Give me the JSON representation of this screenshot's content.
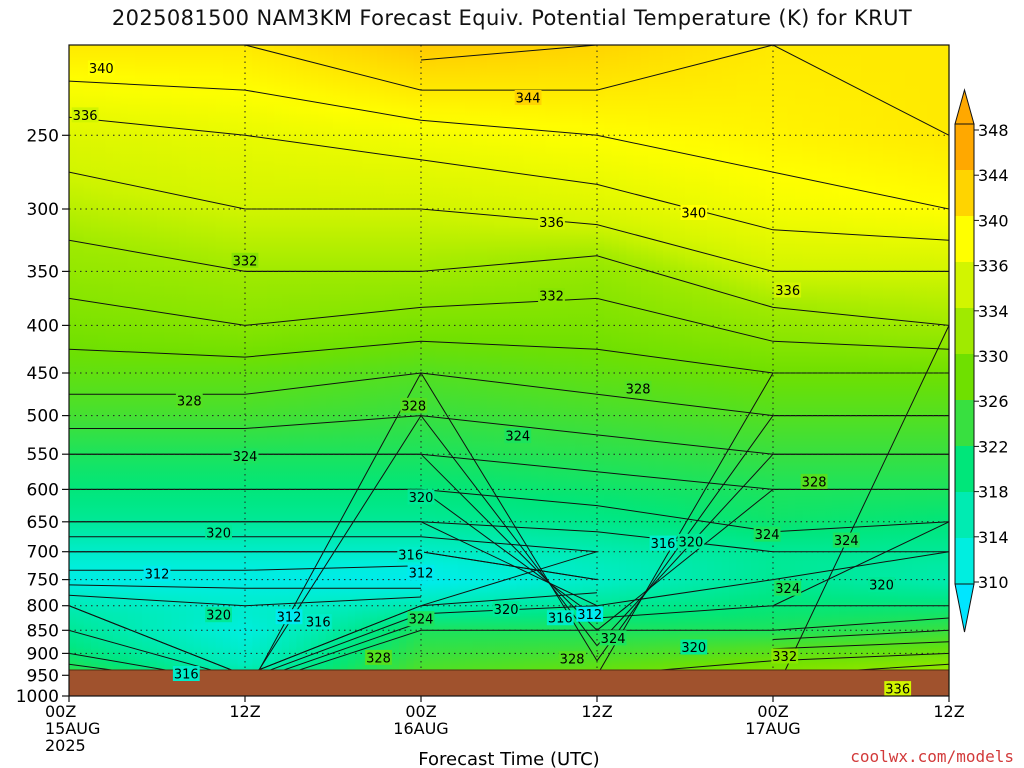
{
  "chart_data": {
    "type": "heatmap",
    "title": "2025081500 NAM3KM Forecast Equiv. Potential Temperature (K) for KRUT",
    "xlabel": "Forecast Time (UTC)",
    "ylabel": "",
    "x_ticks": [
      {
        "hour": 0,
        "lines": [
          "00Z",
          "15AUG",
          "2025"
        ]
      },
      {
        "hour": 12,
        "lines": [
          "12Z"
        ]
      },
      {
        "hour": 24,
        "lines": [
          "00Z",
          "16AUG"
        ]
      },
      {
        "hour": 36,
        "lines": [
          "12Z"
        ]
      },
      {
        "hour": 48,
        "lines": [
          "00Z",
          "17AUG"
        ]
      },
      {
        "hour": 60,
        "lines": [
          "12Z"
        ]
      }
    ],
    "y_ticks": [
      250,
      300,
      350,
      400,
      450,
      500,
      550,
      600,
      650,
      700,
      750,
      800,
      850,
      900,
      950,
      1000
    ],
    "xlim": [
      0,
      60
    ],
    "ylim": [
      1000,
      200
    ],
    "y_scale": "log",
    "grid": true,
    "colorbar": {
      "labels": [
        348,
        344,
        340,
        336,
        334,
        330,
        326,
        322,
        318,
        314,
        310
      ],
      "colors": [
        "#ffa800",
        "#ffd400",
        "#ffff00",
        "#d2f500",
        "#a0ea00",
        "#6fe000",
        "#38e040",
        "#00e67a",
        "#00ebb2",
        "#00eee0",
        "#00e6ff"
      ]
    },
    "theta_e_profiles": [
      {
        "hour": 0,
        "pressure": [
          1000,
          950,
          900,
          850,
          800,
          750,
          700,
          650,
          600,
          550,
          500,
          450,
          400,
          350,
          300,
          250,
          200
        ],
        "theta_e": [
          330,
          326,
          322,
          320,
          318,
          313,
          316,
          320,
          322,
          324,
          327,
          329,
          331,
          333,
          335,
          337,
          342
        ]
      },
      {
        "hour": 12,
        "pressure": [
          1000,
          950,
          900,
          850,
          800,
          750,
          700,
          650,
          600,
          550,
          500,
          450,
          400,
          350,
          300,
          250,
          200
        ],
        "theta_e": [
          328,
          318,
          316,
          314,
          316,
          313,
          316,
          320,
          322,
          324,
          327,
          329,
          332,
          334,
          336,
          338,
          342
        ]
      },
      {
        "hour": 24,
        "pressure": [
          1000,
          950,
          900,
          850,
          800,
          750,
          700,
          650,
          600,
          550,
          500,
          450,
          400,
          350,
          300,
          250,
          200
        ],
        "theta_e": [
          330,
          328,
          326,
          324,
          318,
          312,
          316,
          320,
          322,
          324,
          326,
          328,
          331,
          334,
          336,
          339,
          345
        ]
      },
      {
        "hour": 36,
        "pressure": [
          1000,
          950,
          900,
          850,
          800,
          750,
          700,
          650,
          600,
          550,
          500,
          450,
          400,
          350,
          300,
          250,
          200
        ],
        "theta_e": [
          332,
          330,
          327,
          324,
          320,
          316,
          318,
          321,
          323,
          325,
          327,
          329,
          331,
          333,
          337,
          340,
          344
        ]
      },
      {
        "hour": 48,
        "pressure": [
          1000,
          950,
          900,
          850,
          800,
          750,
          700,
          650,
          600,
          550,
          500,
          450,
          400,
          350,
          300,
          250,
          200
        ],
        "theta_e": [
          334,
          332,
          329,
          324,
          322,
          320,
          320,
          323,
          324,
          326,
          328,
          330,
          333,
          336,
          339,
          341,
          342
        ]
      },
      {
        "hour": 60,
        "pressure": [
          1000,
          950,
          900,
          850,
          800,
          750,
          700,
          650,
          600,
          550,
          500,
          450,
          400,
          350,
          300,
          250,
          200
        ],
        "theta_e": [
          336,
          334,
          330,
          326,
          322,
          318,
          320,
          322,
          324,
          326,
          328,
          330,
          334,
          336,
          340,
          342,
          342
        ]
      }
    ],
    "contour_labels": [
      {
        "text": "340",
        "hour": 2.2,
        "pressure": 212
      },
      {
        "text": "344",
        "hour": 31.3,
        "pressure": 228
      },
      {
        "text": "336",
        "hour": 1.1,
        "pressure": 238
      },
      {
        "text": "336",
        "hour": 32.9,
        "pressure": 310
      },
      {
        "text": "340",
        "hour": 42.6,
        "pressure": 303
      },
      {
        "text": "332",
        "hour": 12.0,
        "pressure": 341
      },
      {
        "text": "332",
        "hour": 32.9,
        "pressure": 372
      },
      {
        "text": "336",
        "hour": 49.0,
        "pressure": 367
      },
      {
        "text": "328",
        "hour": 8.2,
        "pressure": 482
      },
      {
        "text": "328",
        "hour": 23.5,
        "pressure": 488
      },
      {
        "text": "328",
        "hour": 38.8,
        "pressure": 468
      },
      {
        "text": "324",
        "hour": 12.0,
        "pressure": 553
      },
      {
        "text": "324",
        "hour": 30.6,
        "pressure": 526
      },
      {
        "text": "328",
        "hour": 50.8,
        "pressure": 589
      },
      {
        "text": "320",
        "hour": 24.0,
        "pressure": 612
      },
      {
        "text": "320",
        "hour": 10.2,
        "pressure": 668
      },
      {
        "text": "324",
        "hour": 47.6,
        "pressure": 671
      },
      {
        "text": "324",
        "hour": 53.0,
        "pressure": 681
      },
      {
        "text": "316",
        "hour": 40.5,
        "pressure": 686
      },
      {
        "text": "320",
        "hour": 42.4,
        "pressure": 683
      },
      {
        "text": "316",
        "hour": 23.3,
        "pressure": 706
      },
      {
        "text": "312",
        "hour": 6.0,
        "pressure": 740
      },
      {
        "text": "312",
        "hour": 24.0,
        "pressure": 738
      },
      {
        "text": "324",
        "hour": 49.0,
        "pressure": 767
      },
      {
        "text": "320",
        "hour": 55.4,
        "pressure": 760
      },
      {
        "text": "320",
        "hour": 29.8,
        "pressure": 807
      },
      {
        "text": "320",
        "hour": 10.2,
        "pressure": 819
      },
      {
        "text": "312",
        "hour": 15.0,
        "pressure": 823
      },
      {
        "text": "316",
        "hour": 17.0,
        "pressure": 833
      },
      {
        "text": "324",
        "hour": 24.0,
        "pressure": 827
      },
      {
        "text": "316",
        "hour": 33.5,
        "pressure": 825
      },
      {
        "text": "312",
        "hour": 35.5,
        "pressure": 818
      },
      {
        "text": "324",
        "hour": 37.1,
        "pressure": 867
      },
      {
        "text": "320",
        "hour": 42.6,
        "pressure": 887
      },
      {
        "text": "332",
        "hour": 48.8,
        "pressure": 907
      },
      {
        "text": "328",
        "hour": 21.1,
        "pressure": 910
      },
      {
        "text": "328",
        "hour": 34.3,
        "pressure": 913
      },
      {
        "text": "316",
        "hour": 8.0,
        "pressure": 947
      },
      {
        "text": "336",
        "hour": 56.5,
        "pressure": 983
      }
    ]
  },
  "credit": "coolwx.com/models"
}
